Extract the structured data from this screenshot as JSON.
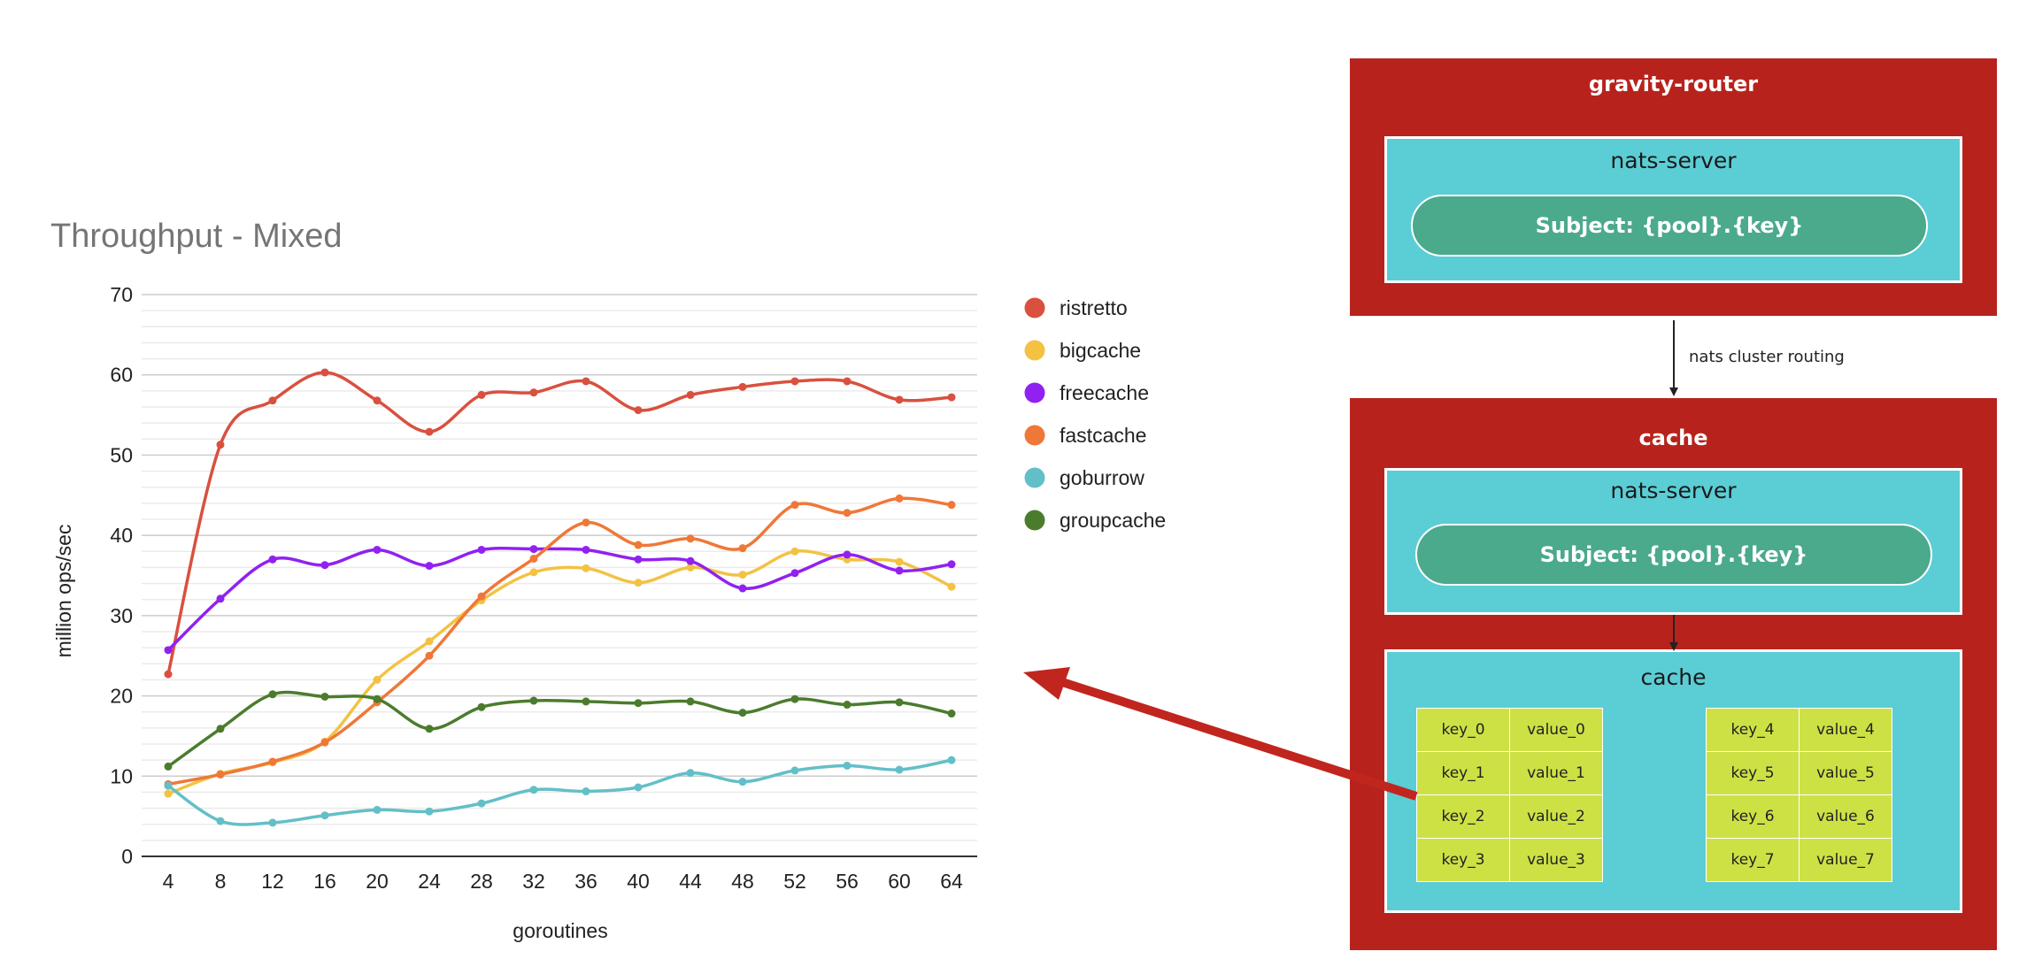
{
  "chart_data": {
    "type": "line",
    "title": "Throughput - Mixed",
    "xlabel": "goroutines",
    "ylabel": "million ops/sec",
    "x": [
      4,
      8,
      12,
      16,
      20,
      24,
      28,
      32,
      36,
      40,
      44,
      48,
      52,
      56,
      60,
      64
    ],
    "ylim": [
      0,
      70
    ],
    "yticks": [
      0,
      10,
      20,
      30,
      40,
      50,
      60,
      70
    ],
    "grid": true,
    "legend_position": "right",
    "series": [
      {
        "name": "ristretto",
        "color": "#d9503f",
        "values": [
          22.7,
          51.3,
          56.8,
          60.3,
          56.8,
          52.9,
          57.5,
          57.8,
          59.2,
          55.6,
          57.5,
          58.5,
          59.2,
          59.2,
          56.9,
          57.2
        ]
      },
      {
        "name": "bigcache",
        "color": "#f3c243",
        "values": [
          7.8,
          10.3,
          11.7,
          14.3,
          22.0,
          26.8,
          31.9,
          35.4,
          35.9,
          34.1,
          36.0,
          35.1,
          38.0,
          37.0,
          36.7,
          33.6
        ]
      },
      {
        "name": "freecache",
        "color": "#9121f0",
        "values": [
          25.7,
          32.1,
          37.0,
          36.3,
          38.2,
          36.2,
          38.2,
          38.3,
          38.2,
          37.0,
          36.8,
          33.4,
          35.3,
          37.6,
          35.6,
          36.4
        ]
      },
      {
        "name": "fastcache",
        "color": "#ef7838",
        "values": [
          9.0,
          10.2,
          11.8,
          14.2,
          19.2,
          25.0,
          32.4,
          37.1,
          41.6,
          38.8,
          39.6,
          38.4,
          43.8,
          42.8,
          44.6,
          43.8
        ]
      },
      {
        "name": "goburrow",
        "color": "#63bfc7",
        "values": [
          8.8,
          4.4,
          4.2,
          5.1,
          5.8,
          5.6,
          6.6,
          8.3,
          8.1,
          8.6,
          10.4,
          9.3,
          10.7,
          11.3,
          10.8,
          12.0
        ]
      },
      {
        "name": "groupcache",
        "color": "#4b7c2d",
        "values": [
          11.2,
          15.9,
          20.2,
          19.9,
          19.6,
          15.9,
          18.6,
          19.4,
          19.3,
          19.1,
          19.3,
          17.9,
          19.6,
          18.9,
          19.2,
          17.8
        ]
      }
    ]
  },
  "diagram": {
    "router": {
      "title": "gravity-router",
      "inner_title": "nats-server",
      "subject": "Subject: {pool}.{key}"
    },
    "edge_label": "nats cluster routing",
    "cache": {
      "title": "cache",
      "inner_title": "nats-server",
      "subject": "Subject: {pool}.{key}",
      "store_title": "cache",
      "left_table": [
        [
          "key_0",
          "value_0"
        ],
        [
          "key_1",
          "value_1"
        ],
        [
          "key_2",
          "value_2"
        ],
        [
          "key_3",
          "value_3"
        ]
      ],
      "right_table": [
        [
          "key_4",
          "value_4"
        ],
        [
          "key_5",
          "value_5"
        ],
        [
          "key_6",
          "value_6"
        ],
        [
          "key_7",
          "value_7"
        ]
      ]
    },
    "colors": {
      "outer_box": "#b7231c",
      "inner_box": "#5bcdd5",
      "pill": "#4ba98c",
      "table": "#cde145",
      "arrow": "#c0261e"
    }
  }
}
